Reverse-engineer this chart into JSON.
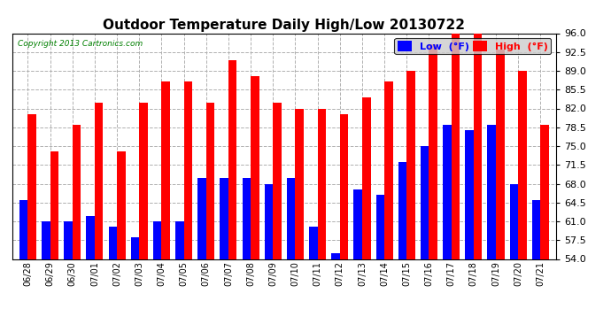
{
  "title": "Outdoor Temperature Daily High/Low 20130722",
  "copyright": "Copyright 2013 Cartronics.com",
  "dates": [
    "06/28",
    "06/29",
    "06/30",
    "07/01",
    "07/02",
    "07/03",
    "07/04",
    "07/05",
    "07/06",
    "07/07",
    "07/08",
    "07/09",
    "07/10",
    "07/11",
    "07/12",
    "07/13",
    "07/14",
    "07/15",
    "07/16",
    "07/17",
    "07/18",
    "07/19",
    "07/20",
    "07/21"
  ],
  "high": [
    81,
    74,
    79,
    83,
    74,
    83,
    87,
    87,
    83,
    91,
    88,
    83,
    82,
    82,
    81,
    84,
    87,
    89,
    94,
    96,
    96,
    93,
    89,
    79
  ],
  "low": [
    65,
    61,
    61,
    62,
    60,
    58,
    61,
    61,
    69,
    69,
    69,
    68,
    69,
    60,
    55,
    67,
    66,
    72,
    75,
    79,
    78,
    79,
    68,
    65
  ],
  "ylim": [
    54,
    96
  ],
  "yticks": [
    54.0,
    57.5,
    61.0,
    64.5,
    68.0,
    71.5,
    75.0,
    78.5,
    82.0,
    85.5,
    89.0,
    92.5,
    96.0
  ],
  "low_color": "#0000ff",
  "high_color": "#ff0000",
  "bg_color": "#ffffff",
  "grid_color": "#b0b0b0",
  "title_fontsize": 11,
  "legend_low_label": "Low  (°F)",
  "legend_high_label": "High  (°F)"
}
